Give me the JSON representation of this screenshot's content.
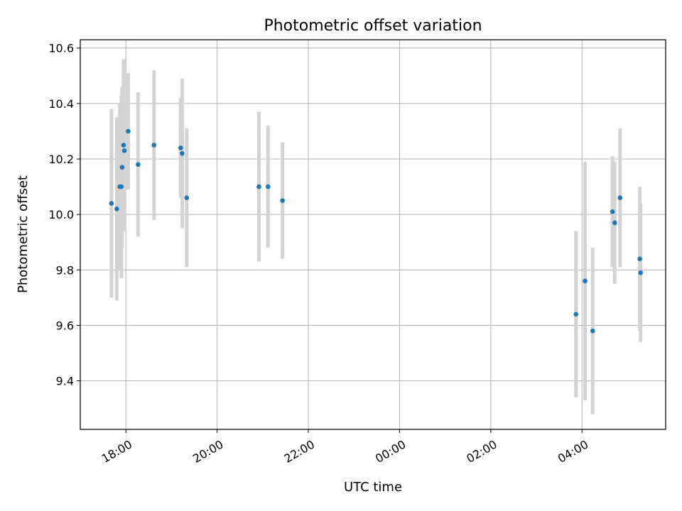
{
  "chart_data": {
    "type": "scatter",
    "title": "Photometric offset variation",
    "xlabel": "UTC time",
    "ylabel": "Photometric offset",
    "x_ticks": [
      "2024-01-01T18:00",
      "2024-01-01T20:00",
      "2024-01-01T22:00",
      "2024-01-02T00:00",
      "2024-01-02T02:00",
      "2024-01-02T04:00"
    ],
    "x_tick_labels": [
      "18:00",
      "20:00",
      "22:00",
      "00:00",
      "02:00",
      "04:00"
    ],
    "xlim": [
      "2024-01-01T17:00",
      "2024-01-02T05:50"
    ],
    "y_ticks": [
      9.4,
      9.6,
      9.8,
      10.0,
      10.2,
      10.4,
      10.6
    ],
    "y_tick_labels": [
      "9.4",
      "9.6",
      "9.8",
      "10.0",
      "10.2",
      "10.4",
      "10.6"
    ],
    "ylim": [
      9.225,
      10.63
    ],
    "grid": true,
    "marker_color": "#1f77b4",
    "errorbar_color": "#d3d3d3",
    "points": [
      {
        "x": "2024-01-01T17:41",
        "y": 10.04,
        "err": 0.34
      },
      {
        "x": "2024-01-01T17:48",
        "y": 10.02,
        "err": 0.33
      },
      {
        "x": "2024-01-01T17:52",
        "y": 10.1,
        "err": 0.3
      },
      {
        "x": "2024-01-01T17:54",
        "y": 10.1,
        "err": 0.33
      },
      {
        "x": "2024-01-01T17:55",
        "y": 10.17,
        "err": 0.29
      },
      {
        "x": "2024-01-01T17:57",
        "y": 10.25,
        "err": 0.31
      },
      {
        "x": "2024-01-01T17:58",
        "y": 10.23,
        "err": 0.29
      },
      {
        "x": "2024-01-01T18:03",
        "y": 10.3,
        "err": 0.21
      },
      {
        "x": "2024-01-01T18:16",
        "y": 10.18,
        "err": 0.26
      },
      {
        "x": "2024-01-01T18:37",
        "y": 10.25,
        "err": 0.27
      },
      {
        "x": "2024-01-01T19:12",
        "y": 10.24,
        "err": 0.18
      },
      {
        "x": "2024-01-01T19:14",
        "y": 10.22,
        "err": 0.27
      },
      {
        "x": "2024-01-01T19:20",
        "y": 10.06,
        "err": 0.25
      },
      {
        "x": "2024-01-01T20:55",
        "y": 10.1,
        "err": 0.27
      },
      {
        "x": "2024-01-01T21:07",
        "y": 10.1,
        "err": 0.22
      },
      {
        "x": "2024-01-01T21:26",
        "y": 10.05,
        "err": 0.21
      },
      {
        "x": "2024-01-02T03:52",
        "y": 9.64,
        "err": 0.3
      },
      {
        "x": "2024-01-02T04:04",
        "y": 9.76,
        "err": 0.43
      },
      {
        "x": "2024-01-02T04:14",
        "y": 9.58,
        "err": 0.3
      },
      {
        "x": "2024-01-02T04:40",
        "y": 10.01,
        "err": 0.2
      },
      {
        "x": "2024-01-02T04:43",
        "y": 9.97,
        "err": 0.22
      },
      {
        "x": "2024-01-02T04:50",
        "y": 10.06,
        "err": 0.25
      },
      {
        "x": "2024-01-02T05:16",
        "y": 9.84,
        "err": 0.26
      },
      {
        "x": "2024-01-02T05:17",
        "y": 9.79,
        "err": 0.25
      }
    ]
  }
}
